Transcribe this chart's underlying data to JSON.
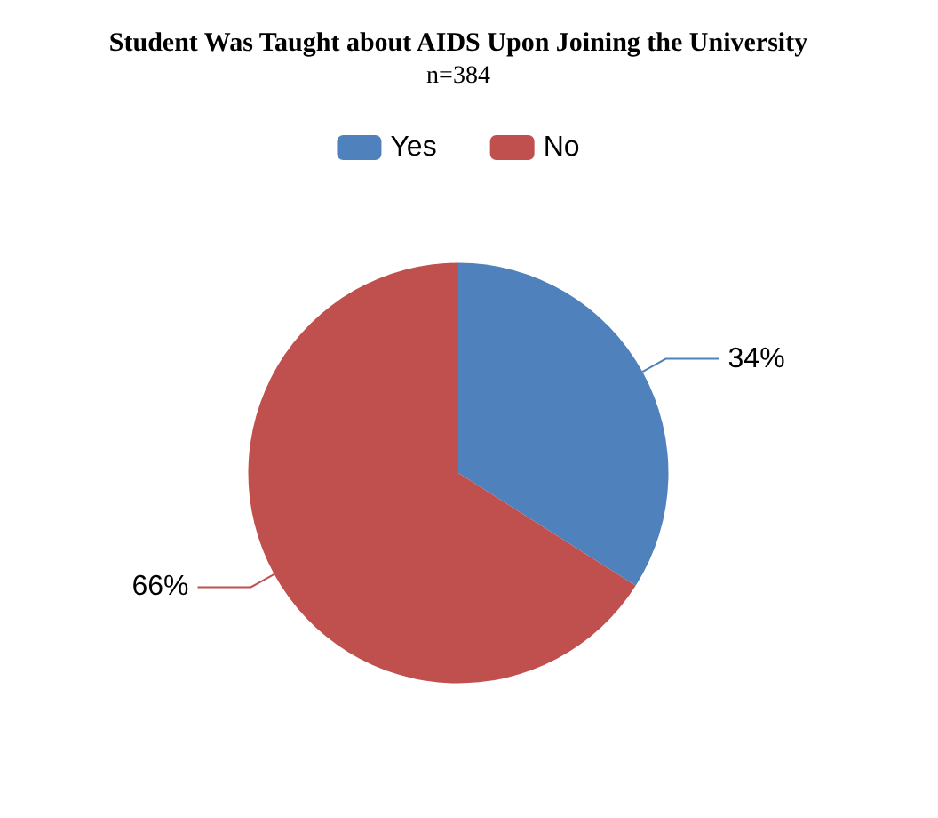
{
  "chart_data": {
    "type": "pie",
    "title": "Student Was Taught about AIDS Upon Joining the University",
    "subtitle": "n=384",
    "categories": [
      "Yes",
      "No"
    ],
    "values": [
      34,
      66
    ],
    "colors": [
      "#4f81bd",
      "#c0504d"
    ],
    "value_labels": [
      "34%",
      "66%"
    ],
    "legend": "top"
  }
}
